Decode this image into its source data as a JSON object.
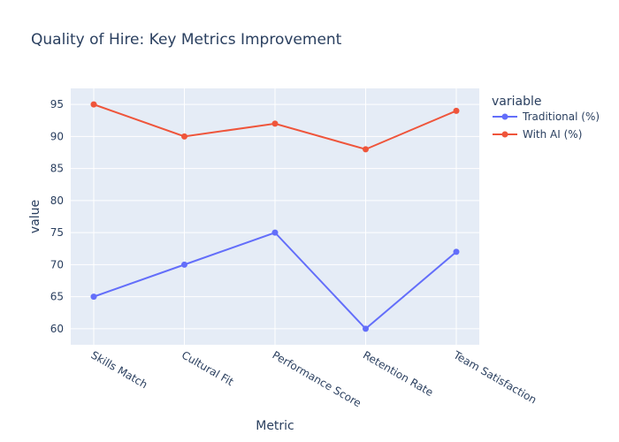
{
  "chart_data": {
    "type": "line",
    "title": "Quality of Hire: Key Metrics Improvement",
    "xlabel": "Metric",
    "ylabel": "value",
    "categories": [
      "Skills Match",
      "Cultural Fit",
      "Performance Score",
      "Retention Rate",
      "Team Satisfaction"
    ],
    "series": [
      {
        "name": "Traditional (%)",
        "values": [
          65,
          70,
          75,
          60,
          72
        ],
        "color": "#636efa"
      },
      {
        "name": "With AI (%)",
        "values": [
          95,
          90,
          92,
          88,
          94
        ],
        "color": "#EF553B"
      }
    ],
    "ylim": [
      57.5,
      97.5
    ],
    "yticks": [
      60,
      65,
      70,
      75,
      80,
      85,
      90,
      95
    ],
    "grid": true,
    "legend": {
      "title": "variable",
      "placement": "right"
    },
    "colors": {
      "plot_background": "#e5ecf6",
      "grid": "#ffffff",
      "text": "#2a3f5f"
    }
  }
}
